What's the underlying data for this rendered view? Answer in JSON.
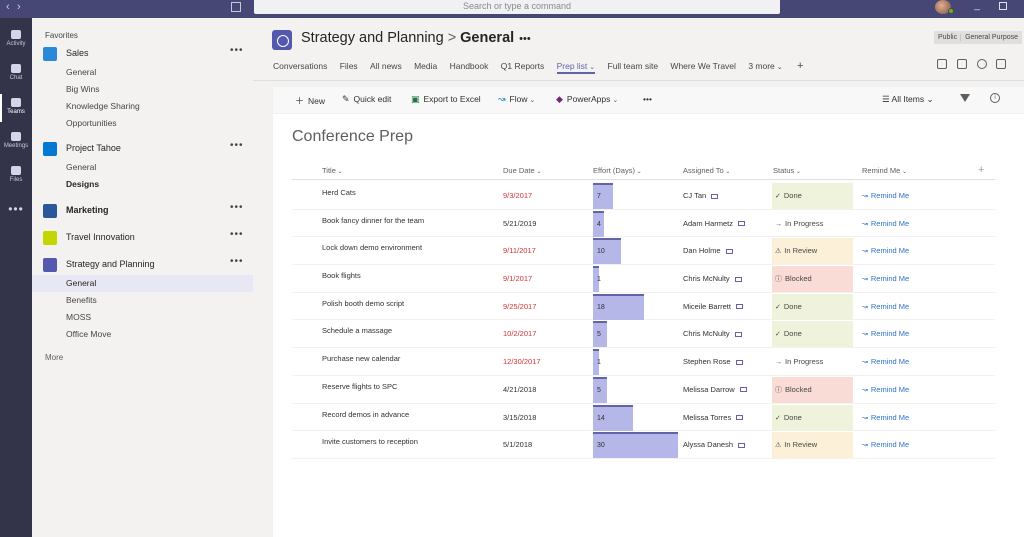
{
  "titlebar": {
    "search_placeholder": "Search or type a command",
    "back": "‹",
    "forward": "›"
  },
  "rail": {
    "items": [
      {
        "label": "Activity",
        "icon": "bell-icon"
      },
      {
        "label": "Chat",
        "icon": "chat-icon"
      },
      {
        "label": "Teams",
        "icon": "teams-icon"
      },
      {
        "label": "Meetings",
        "icon": "calendar-icon"
      },
      {
        "label": "Files",
        "icon": "files-icon"
      }
    ],
    "more": "•••"
  },
  "sidebar": {
    "favorites_label": "Favorites",
    "more_label": "More",
    "team_more": "•••",
    "teams": [
      {
        "name": "Sales",
        "color": "#2b88d8",
        "channels": [
          "General",
          "Big Wins",
          "Knowledge Sharing",
          "Opportunities"
        ]
      },
      {
        "name": "Project Tahoe",
        "color": "#0078d4",
        "channels": [
          "General",
          "Designs"
        ]
      },
      {
        "name": "Marketing",
        "color": "#2b579a",
        "channels": []
      },
      {
        "name": "Travel Innovation",
        "color": "#c4d600",
        "channels": []
      },
      {
        "name": "Strategy and Planning",
        "color": "#5558af",
        "channels": [
          "General",
          "Benefits",
          "MOSS",
          "Office Move"
        ]
      }
    ]
  },
  "header": {
    "team": "Strategy and Planning",
    "separator": ">",
    "channel": "General",
    "more": "•••",
    "visibility": "Public",
    "classification": "General Purpose"
  },
  "tabs": [
    {
      "label": "Conversations"
    },
    {
      "label": "Files"
    },
    {
      "label": "All news"
    },
    {
      "label": "Media"
    },
    {
      "label": "Handbook"
    },
    {
      "label": "Q1 Reports"
    },
    {
      "label": "Prep list"
    },
    {
      "label": "Full team site"
    },
    {
      "label": "Where We Travel"
    },
    {
      "label": "3 more"
    }
  ],
  "commandbar": {
    "new": "New",
    "quick_edit": "Quick edit",
    "export": "Export to Excel",
    "flow": "Flow",
    "powerapps": "PowerApps",
    "more": "•••",
    "view": "All Items"
  },
  "list": {
    "title": "Conference Prep",
    "columns": {
      "title": "Title",
      "due": "Due Date",
      "effort": "Effort (Days)",
      "assigned": "Assigned To",
      "status": "Status",
      "remind": "Remind Me",
      "add": "+"
    },
    "rows": [
      {
        "title": "Herd Cats",
        "due": "9/3/2017",
        "overdue": true,
        "effort": 7,
        "assigned": "CJ Tan",
        "status": "Done",
        "status_type": "done",
        "remind": "Remind Me"
      },
      {
        "title": "Book fancy dinner for the team",
        "due": "5/21/2019",
        "overdue": false,
        "effort": 4,
        "assigned": "Adam Harmetz",
        "status": "In Progress",
        "status_type": "progress",
        "remind": "Remind Me"
      },
      {
        "title": "Lock down demo environment",
        "due": "9/11/2017",
        "overdue": true,
        "effort": 10,
        "assigned": "Dan Holme",
        "status": "In Review",
        "status_type": "review",
        "remind": "Remind Me"
      },
      {
        "title": "Book flights",
        "due": "9/1/2017",
        "overdue": true,
        "effort": 1,
        "assigned": "Chris McNulty",
        "status": "Blocked",
        "status_type": "blocked",
        "remind": "Remind Me"
      },
      {
        "title": "Polish booth demo script",
        "due": "9/25/2017",
        "overdue": true,
        "effort": 18,
        "assigned": "Miceile Barrett",
        "status": "Done",
        "status_type": "done",
        "remind": "Remind Me"
      },
      {
        "title": "Schedule a massage",
        "due": "10/2/2017",
        "overdue": true,
        "effort": 5,
        "assigned": "Chris McNulty",
        "status": "Done",
        "status_type": "done",
        "remind": "Remind Me"
      },
      {
        "title": "Purchase new calendar",
        "due": "12/30/2017",
        "overdue": true,
        "effort": 1,
        "assigned": "Stephen Rose",
        "status": "In Progress",
        "status_type": "progress",
        "remind": "Remind Me"
      },
      {
        "title": "Reserve flights to SPC",
        "due": "4/21/2018",
        "overdue": false,
        "effort": 5,
        "assigned": "Melissa Darrow",
        "status": "Blocked",
        "status_type": "blocked",
        "remind": "Remind Me"
      },
      {
        "title": "Record demos in advance",
        "due": "3/15/2018",
        "overdue": false,
        "effort": 14,
        "assigned": "Melissa Torres",
        "status": "Done",
        "status_type": "done",
        "remind": "Remind Me"
      },
      {
        "title": "Invite customers to reception",
        "due": "5/1/2018",
        "overdue": false,
        "effort": 30,
        "assigned": "Alyssa Danesh",
        "status": "In Review",
        "status_type": "review",
        "remind": "Remind Me"
      }
    ]
  }
}
